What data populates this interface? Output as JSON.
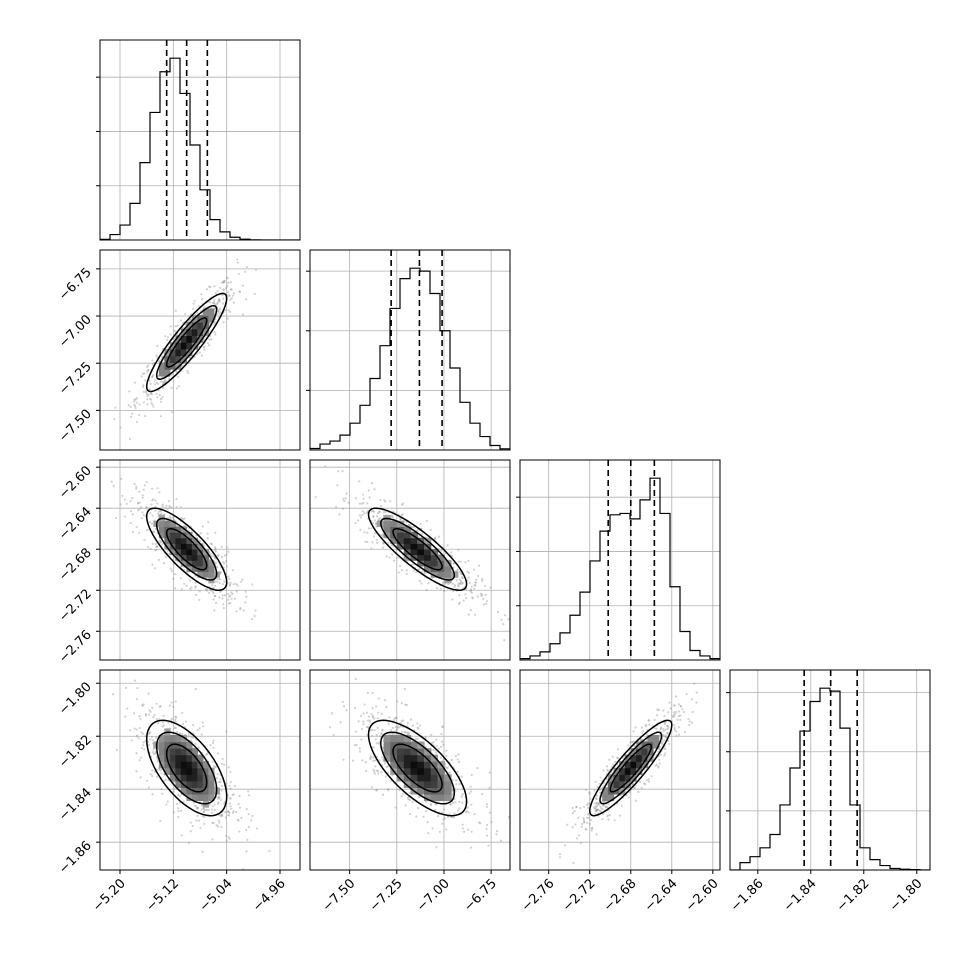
{
  "chart_data": {
    "type": "corner",
    "grid": true,
    "variables": [
      {
        "range": [
          -5.23,
          -4.93
        ],
        "ticks": [
          -5.2,
          -5.12,
          -5.04,
          -4.96
        ],
        "tick_labels": [
          "−5.20",
          "−5.12",
          "−5.04",
          "−4.96"
        ],
        "quantiles": [
          -5.13,
          -5.1,
          -5.069
        ],
        "mean": -5.1,
        "std": 0.03,
        "histogram": {
          "bin_start": -5.23,
          "bin_width": 0.015,
          "counts": [
            0.5,
            4,
            11,
            27,
            57,
            94,
            124,
            134,
            108,
            70,
            37,
            15,
            6,
            2,
            0.6,
            0.1,
            0,
            0,
            0,
            0
          ]
        }
      },
      {
        "range": [
          -7.71,
          -6.65
        ],
        "ticks": [
          -7.5,
          -7.25,
          -7.0,
          -6.75
        ],
        "tick_labels": [
          "−7.50",
          "−7.25",
          "−7.00",
          "−6.75"
        ],
        "quantiles": [
          -7.28,
          -7.13,
          -7.01
        ],
        "mean": -7.14,
        "std": 0.13,
        "histogram": {
          "bin_start": -7.71,
          "bin_width": 0.053,
          "counts": [
            1,
            4,
            6,
            10,
            18,
            30,
            48,
            70,
            95,
            115,
            122,
            120,
            105,
            80,
            55,
            32,
            18,
            9,
            3,
            0.8
          ]
        }
      },
      {
        "range": [
          -2.788,
          -2.593
        ],
        "ticks": [
          -2.76,
          -2.72,
          -2.68,
          -2.64,
          -2.6
        ],
        "tick_labels": [
          "−2.76",
          "−2.72",
          "−2.68",
          "−2.64",
          "−2.60"
        ],
        "y_tick_labels": [
          "−2.60",
          "−2.64",
          "−2.68",
          "−2.72",
          "−2.76"
        ],
        "quantiles": [
          -2.702,
          -2.68,
          -2.657
        ],
        "mean": -2.68,
        "std": 0.02,
        "histogram": {
          "bin_start": -2.788,
          "bin_width": 0.00975,
          "counts": [
            1,
            3,
            6,
            12,
            20,
            33,
            50,
            73,
            95,
            107,
            108,
            104,
            118,
            134,
            108,
            54,
            21,
            7,
            3,
            1
          ]
        }
      },
      {
        "range": [
          -1.8705,
          -1.795
        ],
        "ticks": [
          -1.86,
          -1.84,
          -1.82,
          -1.8
        ],
        "tick_labels": [
          "−1.86",
          "−1.84",
          "−1.82",
          "−1.80"
        ],
        "quantiles": [
          -1.8425,
          -1.8325,
          -1.8225
        ],
        "mean": -1.832,
        "std": 0.009,
        "histogram": {
          "bin_start": -1.8705,
          "bin_width": 0.003775,
          "counts": [
            0,
            5,
            9,
            15,
            24,
            44,
            69,
            94,
            114,
            123,
            121,
            96,
            44,
            15,
            7,
            3,
            1,
            0.5,
            0.3,
            0
          ]
        }
      }
    ],
    "correlations": [
      [
        1,
        0.9,
        -0.8,
        -0.6
      ],
      [
        0.9,
        1,
        -0.85,
        -0.7
      ],
      [
        -0.8,
        -0.85,
        1,
        0.9
      ],
      [
        -0.6,
        -0.7,
        0.9,
        1
      ]
    ],
    "contour_levels_sigma": [
      1,
      1.5,
      2
    ]
  }
}
